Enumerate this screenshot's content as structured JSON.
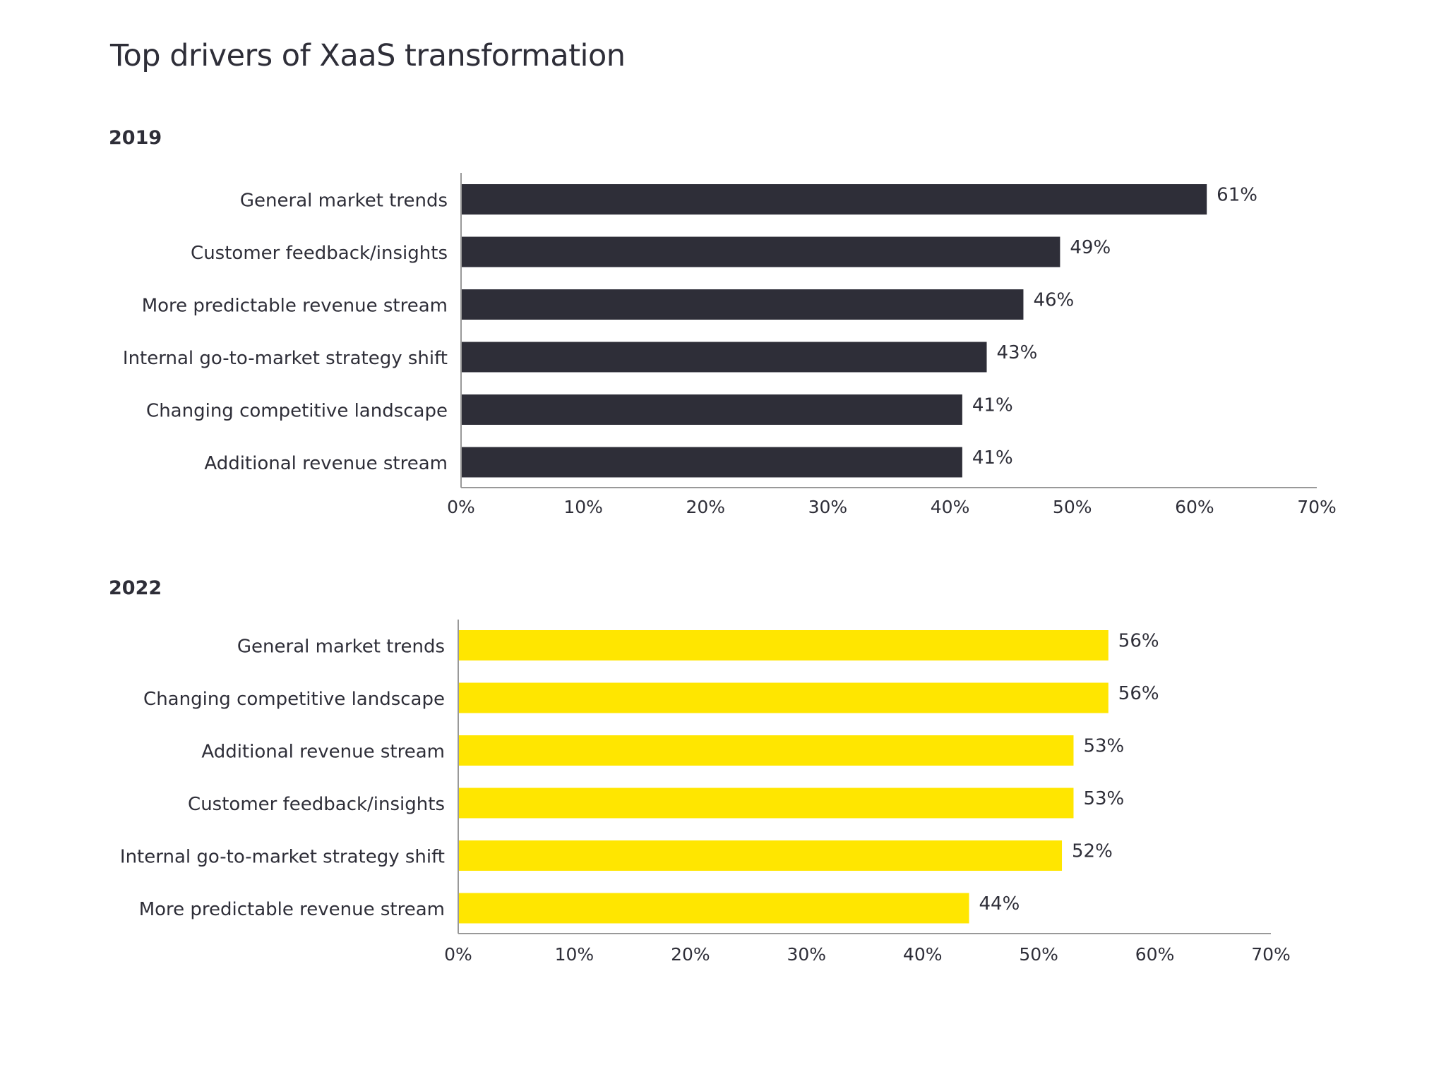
{
  "title": "Top drivers of XaaS transformation",
  "colors": {
    "dark_bar": "#2e2e38",
    "yellow_bar": "#ffe600",
    "axis": "#999999",
    "text": "#2e2e38"
  },
  "chart_data": [
    {
      "type": "bar",
      "orientation": "horizontal",
      "subtitle": "2019",
      "title": "Top drivers of XaaS transformation",
      "xlabel": "",
      "ylabel": "",
      "categories": [
        "General market trends",
        "Customer feedback/insights",
        "More predictable revenue stream",
        "Internal go-to-market strategy shift",
        "Changing competitive landscape",
        "Additional revenue stream"
      ],
      "values": [
        61,
        49,
        46,
        43,
        41,
        41
      ],
      "value_labels": [
        "61%",
        "49%",
        "46%",
        "43%",
        "41%",
        "41%"
      ],
      "xlim": [
        0,
        70
      ],
      "xticks": [
        0,
        10,
        20,
        30,
        40,
        50,
        60,
        70
      ],
      "xtick_labels": [
        "0%",
        "10%",
        "20%",
        "30%",
        "40%",
        "50%",
        "60%",
        "70%"
      ],
      "bar_color": "#2e2e38",
      "grid": false,
      "legend": "none"
    },
    {
      "type": "bar",
      "orientation": "horizontal",
      "subtitle": "2022",
      "title": "Top drivers of XaaS transformation",
      "xlabel": "",
      "ylabel": "",
      "categories": [
        "General market trends",
        "Changing competitive landscape",
        "Additional revenue stream",
        "Customer feedback/insights",
        "Internal go-to-market strategy shift",
        "More predictable revenue stream"
      ],
      "values": [
        56,
        56,
        53,
        53,
        52,
        44
      ],
      "value_labels": [
        "56%",
        "56%",
        "53%",
        "53%",
        "52%",
        "44%"
      ],
      "xlim": [
        0,
        70
      ],
      "xticks": [
        0,
        10,
        20,
        30,
        40,
        50,
        60,
        70
      ],
      "xtick_labels": [
        "0%",
        "10%",
        "20%",
        "30%",
        "40%",
        "50%",
        "60%",
        "70%"
      ],
      "bar_color": "#ffe600",
      "grid": false,
      "legend": "none"
    }
  ]
}
